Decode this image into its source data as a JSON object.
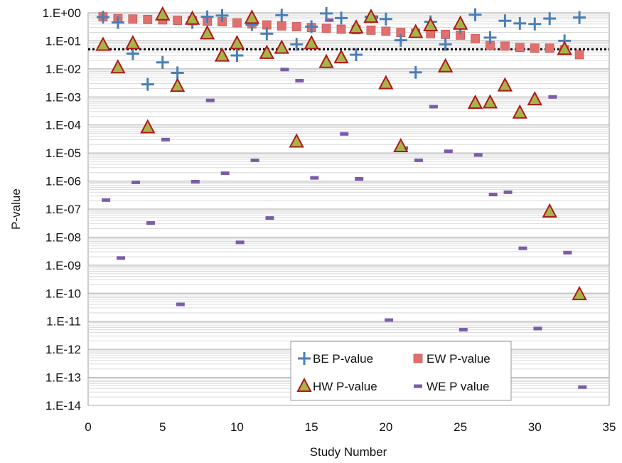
{
  "chart_data": {
    "type": "scatter",
    "xlabel": "Study Number",
    "ylabel": "P-value",
    "xlim": [
      0,
      35
    ],
    "xticks": [
      "0",
      "5",
      "10",
      "15",
      "20",
      "25",
      "30",
      "35"
    ],
    "ylim_exponent": [
      -14,
      0
    ],
    "y_scale": "log",
    "yticks": [
      "1.E+00",
      "1.E-01",
      "1.E-02",
      "1.E-03",
      "1.E-04",
      "1.E-05",
      "1.E-06",
      "1.E-07",
      "1.E-08",
      "1.E-09",
      "1.E-10",
      "1.E-11",
      "1.E-12",
      "1.E-13",
      "1.E-14"
    ],
    "grid": true,
    "reference_line": {
      "y": 0.05,
      "style": "dotted",
      "color": "#000000"
    },
    "legend_position": "bottom-center",
    "series": [
      {
        "name": "BE P-value",
        "marker": "plus",
        "color": "#4a7fb5",
        "x": [
          1,
          2,
          3,
          4,
          5,
          6,
          7,
          8,
          9,
          10,
          11,
          12,
          13,
          14,
          15,
          16,
          17,
          18,
          19,
          20,
          21,
          22,
          23,
          24,
          25,
          26,
          27,
          28,
          29,
          30,
          31,
          32,
          33
        ],
        "y": [
          0.7,
          0.45,
          0.035,
          0.0028,
          0.017,
          0.0072,
          0.45,
          0.72,
          0.8,
          0.03,
          0.38,
          0.18,
          0.82,
          0.075,
          0.32,
          0.95,
          0.65,
          0.032,
          0.72,
          0.6,
          0.105,
          0.0075,
          0.48,
          0.075,
          0.3,
          0.85,
          0.13,
          0.52,
          0.42,
          0.4,
          0.62,
          0.1,
          0.68
        ]
      },
      {
        "name": "EW P-value",
        "marker": "square",
        "color": "#e07070",
        "x": [
          1,
          2,
          3,
          4,
          5,
          6,
          7,
          8,
          9,
          10,
          11,
          12,
          13,
          14,
          15,
          16,
          17,
          18,
          19,
          20,
          21,
          22,
          23,
          24,
          25,
          26,
          27,
          28,
          29,
          30,
          31,
          32,
          33
        ],
        "y": [
          0.72,
          0.62,
          0.6,
          0.58,
          0.56,
          0.54,
          0.52,
          0.5,
          0.48,
          0.44,
          0.4,
          0.37,
          0.34,
          0.32,
          0.3,
          0.28,
          0.26,
          0.25,
          0.24,
          0.22,
          0.2,
          0.19,
          0.18,
          0.17,
          0.16,
          0.12,
          0.068,
          0.065,
          0.058,
          0.055,
          0.055,
          0.048,
          0.032
        ]
      },
      {
        "name": "HW P-value",
        "marker": "triangle",
        "color": "#a6b54a",
        "x": [
          1,
          2,
          3,
          4,
          5,
          6,
          7,
          8,
          9,
          10,
          11,
          12,
          13,
          14,
          15,
          16,
          17,
          18,
          19,
          20,
          21,
          22,
          23,
          24,
          25,
          26,
          27,
          28,
          29,
          30,
          31,
          32,
          33
        ],
        "y": [
          0.07,
          0.011,
          0.08,
          8e-05,
          0.85,
          0.0024,
          0.6,
          0.18,
          0.029,
          0.08,
          0.65,
          0.036,
          0.055,
          2.5e-05,
          0.08,
          0.017,
          0.025,
          0.29,
          0.7,
          0.003,
          1.7e-05,
          0.2,
          0.35,
          0.012,
          0.4,
          0.0006,
          0.00062,
          0.0025,
          0.00027,
          0.0008,
          8e-08,
          0.05,
          9e-11
        ]
      },
      {
        "name": "WE P value",
        "marker": "dash",
        "color": "#7a5ca8",
        "x": [
          1,
          2,
          3,
          4,
          5,
          6,
          7,
          8,
          9,
          10,
          11,
          12,
          13,
          14,
          15,
          16,
          17,
          18,
          19,
          20,
          21,
          22,
          23,
          24,
          25,
          26,
          27,
          28,
          29,
          30,
          31,
          32,
          33
        ],
        "y": [
          2.1e-07,
          1.8e-09,
          9e-07,
          3.2e-08,
          3e-05,
          4e-11,
          9.5e-07,
          0.00075,
          1.9e-06,
          6.5e-09,
          5.5e-06,
          4.8e-08,
          0.0095,
          0.0038,
          1.3e-06,
          0.55,
          4.8e-05,
          1.2e-06,
          0.7,
          1.1e-11,
          1.5e-05,
          5.5e-06,
          0.00045,
          1.15e-05,
          5e-12,
          8.5e-06,
          3.3e-07,
          4e-07,
          4e-09,
          5.5e-12,
          0.001,
          2.8e-09,
          4.5e-14
        ]
      }
    ]
  }
}
